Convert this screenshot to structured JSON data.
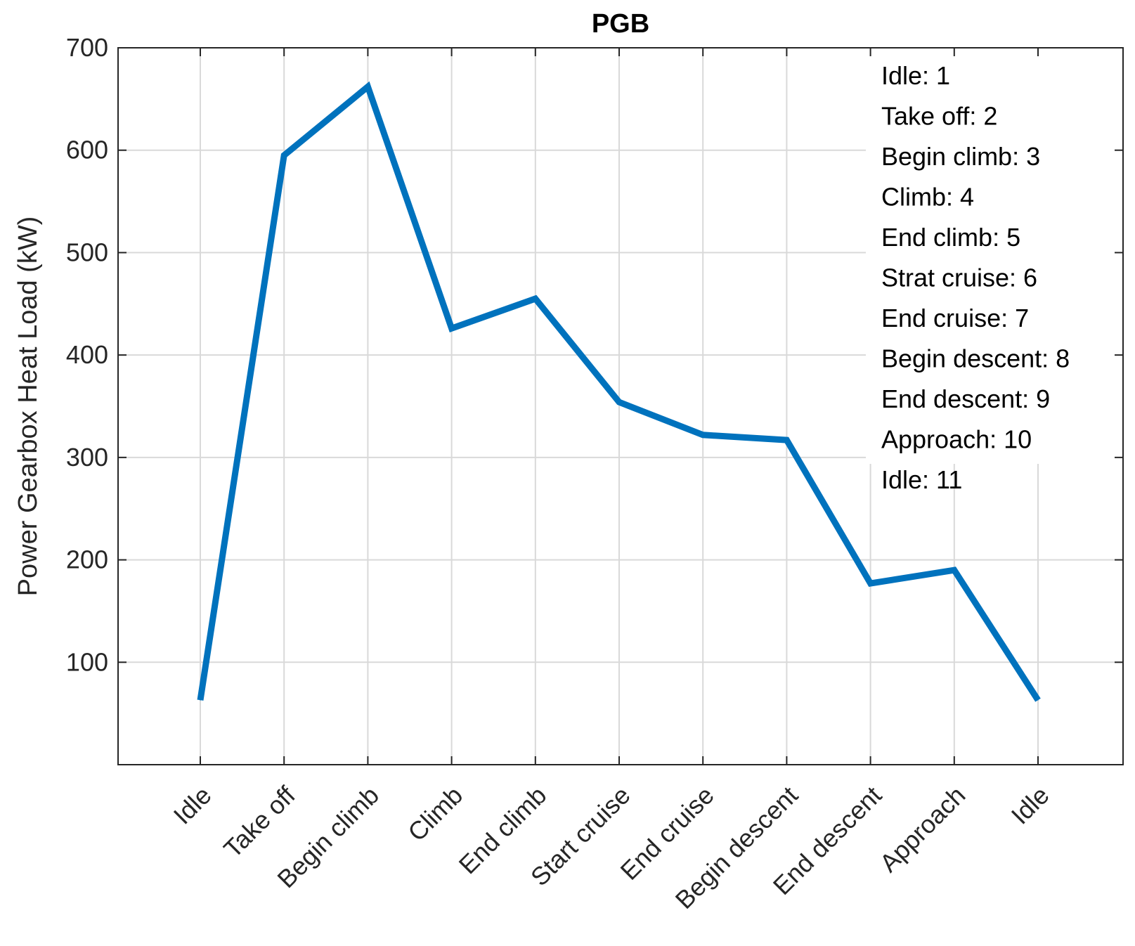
{
  "chart_data": {
    "type": "line",
    "title": "PGB",
    "xlabel": "",
    "ylabel": "Power Gearbox Heat Load (kW)",
    "categories": [
      "Idle",
      "Take off",
      "Begin climb",
      "Climb",
      "End climb",
      "Start cruise",
      "End cruise",
      "Begin descent",
      "End descent",
      "Approach",
      "Idle"
    ],
    "series": [
      {
        "name": "PGB",
        "color": "#0072bd",
        "values": [
          63,
          595,
          662,
          426,
          455,
          354,
          322,
          317,
          177,
          190,
          63
        ]
      }
    ],
    "ylim": [
      0,
      700
    ],
    "yticks": [
      100,
      200,
      300,
      400,
      500,
      600,
      700
    ],
    "grid": true,
    "annotation": {
      "location": "top-right",
      "lines": [
        "Idle: 1",
        "Take off: 2",
        "Begin climb: 3",
        "Climb: 4",
        "End climb: 5",
        "Strat cruise: 6",
        "End cruise: 7",
        "Begin descent: 8",
        "End descent: 9",
        "Approach: 10",
        "Idle: 11"
      ]
    }
  }
}
